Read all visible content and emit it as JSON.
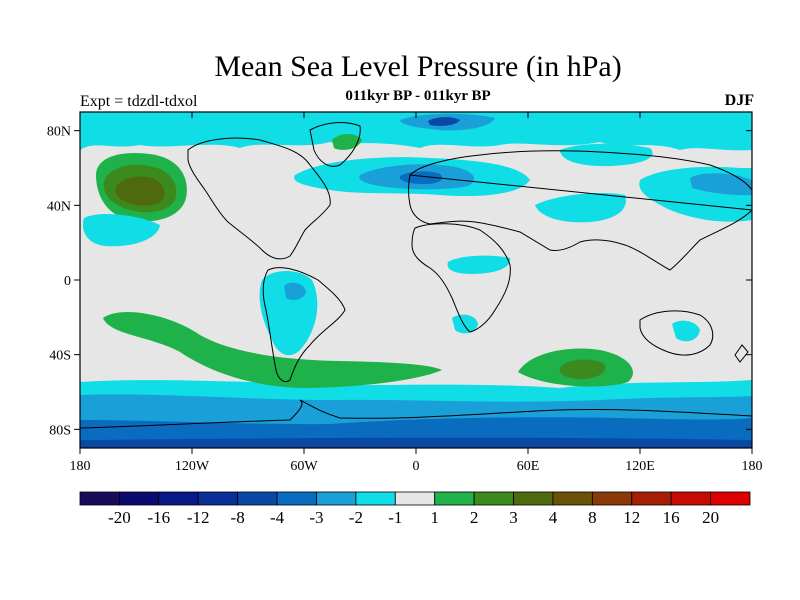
{
  "title": "Mean Sea Level Pressure (in hPa)",
  "subtitle": "011kyr BP - 011kyr BP",
  "expt_label": "Expt = tdzdl-tdxol",
  "season": "DJF",
  "lat_labels": [
    "80N",
    "40N",
    "0",
    "40S",
    "80S"
  ],
  "lon_labels": [
    "180",
    "120W",
    "60W",
    "0",
    "60E",
    "120E",
    "180"
  ],
  "colorbar": {
    "labels": [
      "-20",
      "-16",
      "-12",
      "-8",
      "-4",
      "-3",
      "-2",
      "-1",
      "1",
      "2",
      "3",
      "4",
      "8",
      "12",
      "16",
      "20"
    ],
    "colors": [
      "#1a0a5c",
      "#0c0a70",
      "#081a85",
      "#0a2f97",
      "#0a48a6",
      "#0a6cbf",
      "#1aa0d8",
      "#10dde6",
      "#e6e6e6",
      "#1fb24a",
      "#3c8a1e",
      "#4f6a0c",
      "#6b5208",
      "#8a3a06",
      "#a61f04",
      "#c40c04",
      "#dd0000"
    ]
  },
  "colors": {
    "background": "#e6e6e6",
    "neg1": "#10dde6",
    "neg2": "#1aa0d8",
    "neg3": "#0a6cbf",
    "neg4": "#0a48a6",
    "pos1": "#1fb24a",
    "pos2": "#3c8a1e",
    "pos3": "#4f6a0c",
    "pos4": "#6b5208"
  }
}
